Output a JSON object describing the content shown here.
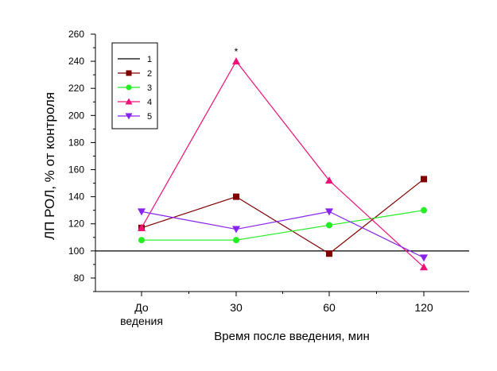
{
  "chart_data": {
    "type": "line",
    "categories": [
      "До\nведения",
      "30",
      "60",
      "120"
    ],
    "xlabel": "Время после введения, мин",
    "ylabel": "ЛП РОЛ, % от контроля",
    "ylim": [
      70,
      260
    ],
    "yticks": [
      80,
      100,
      120,
      140,
      160,
      180,
      200,
      220,
      240,
      260
    ],
    "grid": false,
    "legend_position": "top-left",
    "series": [
      {
        "name": "1",
        "values": [
          100,
          100,
          100,
          100
        ],
        "color": "#000000",
        "marker": "none"
      },
      {
        "name": "2",
        "values": [
          117,
          140,
          98,
          153
        ],
        "color": "#800000",
        "marker": "square"
      },
      {
        "name": "3",
        "values": [
          108,
          108,
          119,
          130
        ],
        "color": "#22ee22",
        "marker": "circle"
      },
      {
        "name": "4",
        "values": [
          117,
          240,
          152,
          88
        ],
        "color": "#ee1177",
        "marker": "triangle-up"
      },
      {
        "name": "5",
        "values": [
          129,
          116,
          129,
          95
        ],
        "color": "#8822ee",
        "marker": "triangle-down"
      }
    ],
    "annotations": [
      {
        "text": "*",
        "series": "4",
        "category_index": 1
      }
    ]
  }
}
